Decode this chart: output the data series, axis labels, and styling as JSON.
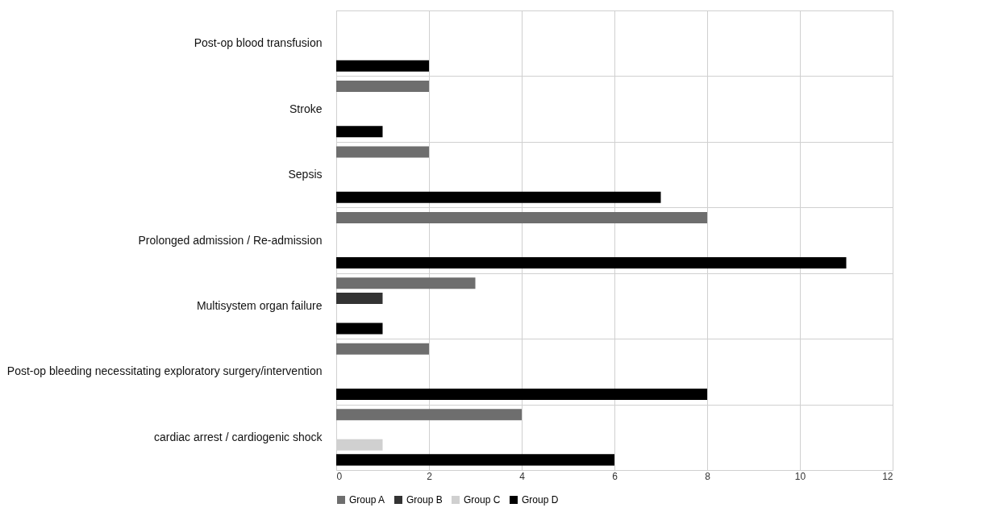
{
  "chart_data": {
    "type": "bar",
    "orientation": "horizontal",
    "categories": [
      "Post-op blood transfusion",
      "Stroke",
      "Sepsis",
      "Prolonged admission / Re-admission",
      "Multisystem organ failure",
      "Post-op bleeding necessitating exploratory surgery/intervention",
      "cardiac arrest / cardiogenic shock"
    ],
    "series": [
      {
        "name": "Group A",
        "color": "#6e6e6e",
        "values": [
          null,
          2,
          2,
          8,
          3,
          2,
          4
        ]
      },
      {
        "name": "Group B",
        "color": "#333333",
        "values": [
          null,
          null,
          null,
          null,
          1,
          null,
          null
        ]
      },
      {
        "name": "Group C",
        "color": "#d0d0d0",
        "values": [
          null,
          null,
          null,
          null,
          null,
          null,
          1
        ]
      },
      {
        "name": "Group D",
        "color": "#000000",
        "values": [
          2,
          1,
          7,
          11,
          1,
          8,
          6
        ]
      }
    ],
    "xlim": [
      0,
      12
    ],
    "xticks": [
      0,
      2,
      4,
      6,
      8,
      10,
      12
    ],
    "grid": true,
    "legend": "bottom"
  }
}
